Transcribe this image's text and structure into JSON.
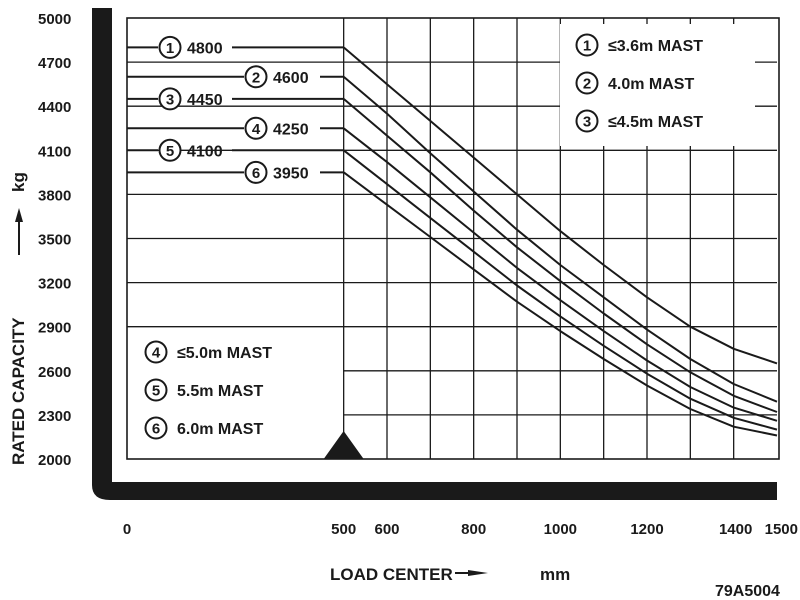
{
  "chart_data": {
    "type": "line",
    "xlabel": "LOAD CENTER",
    "xunit": "mm",
    "ylabel": "RATED CAPACITY",
    "yunit": "kg",
    "code": "79A5004",
    "xlim": [
      0,
      1500
    ],
    "ylim": [
      2000,
      5000
    ],
    "x_ticks": [
      0,
      500,
      600,
      800,
      1000,
      1200,
      1400,
      1500
    ],
    "x_tick_labels": [
      "0",
      "500",
      "600",
      "800",
      "1000",
      "1200",
      "1400",
      "1500"
    ],
    "y_ticks": [
      2000,
      2300,
      2600,
      2900,
      3200,
      3500,
      3800,
      4100,
      4400,
      4700,
      5000
    ],
    "y_tick_labels": [
      "2000",
      "2300",
      "2600",
      "2900",
      "3200",
      "3500",
      "3800",
      "4100",
      "4400",
      "4700",
      "5000"
    ],
    "load_center_marker": 500,
    "series": [
      {
        "id": "1",
        "rated_label": "4800",
        "legend": "≤3.6m MAST",
        "x": [
          500,
          600,
          700,
          800,
          900,
          1000,
          1100,
          1200,
          1300,
          1400,
          1500
        ],
        "y": [
          4800,
          4550,
          4300,
          4050,
          3800,
          3550,
          3320,
          3100,
          2900,
          2750,
          2650
        ]
      },
      {
        "id": "2",
        "rated_label": "4600",
        "legend": "4.0m MAST",
        "x": [
          500,
          600,
          700,
          800,
          900,
          1000,
          1100,
          1200,
          1300,
          1400,
          1500
        ],
        "y": [
          4600,
          4350,
          4080,
          3820,
          3560,
          3320,
          3100,
          2880,
          2680,
          2510,
          2390
        ]
      },
      {
        "id": "3",
        "rated_label": "4450",
        "legend": "≤4.5m MAST",
        "x": [
          500,
          600,
          700,
          800,
          900,
          1000,
          1100,
          1200,
          1300,
          1400,
          1500
        ],
        "y": [
          4450,
          4200,
          3950,
          3690,
          3440,
          3210,
          2990,
          2780,
          2590,
          2430,
          2320
        ]
      },
      {
        "id": "4",
        "rated_label": "4250",
        "legend": "≤5.0m MAST",
        "x": [
          500,
          600,
          700,
          800,
          900,
          1000,
          1100,
          1200,
          1300,
          1400,
          1500
        ],
        "y": [
          4250,
          4020,
          3780,
          3540,
          3300,
          3080,
          2870,
          2670,
          2490,
          2350,
          2260
        ]
      },
      {
        "id": "5",
        "rated_label": "4100",
        "legend": "5.5m MAST",
        "x": [
          500,
          600,
          700,
          800,
          900,
          1000,
          1100,
          1200,
          1300,
          1400,
          1500
        ],
        "y": [
          4100,
          3870,
          3640,
          3410,
          3180,
          2970,
          2770,
          2580,
          2410,
          2280,
          2200
        ]
      },
      {
        "id": "6",
        "rated_label": "3950",
        "legend": "6.0m MAST",
        "x": [
          500,
          600,
          700,
          800,
          900,
          1000,
          1100,
          1200,
          1300,
          1400,
          1500
        ],
        "y": [
          3950,
          3730,
          3510,
          3290,
          3070,
          2870,
          2680,
          2500,
          2340,
          2220,
          2160
        ]
      }
    ]
  }
}
